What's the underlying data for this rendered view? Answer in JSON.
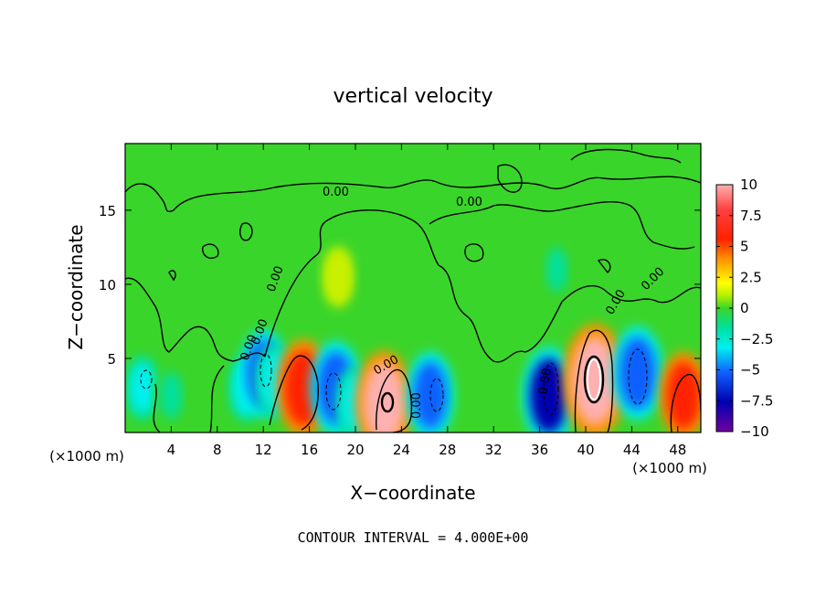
{
  "chart_data": {
    "type": "heatmap",
    "title": "vertical velocity",
    "xlabel": "X−coordinate",
    "ylabel": "Z−coordinate",
    "x_unit_left": "(×1000 m)",
    "x_unit_right": "(×1000 m)",
    "footer": "CONTOUR INTERVAL = 4.000E+00",
    "xlim": [
      0,
      50
    ],
    "ylim": [
      0,
      19.5
    ],
    "xticks": [
      "4",
      "8",
      "12",
      "16",
      "20",
      "24",
      "28",
      "32",
      "36",
      "40",
      "44",
      "48"
    ],
    "yticks": [
      "5",
      "10",
      "15"
    ],
    "colorbar": {
      "range": [
        -10,
        10
      ],
      "tick_labels": [
        "10",
        "7.5",
        "5",
        "2.5",
        "0",
        "−2.5",
        "−5",
        "−7.5",
        "−10"
      ]
    },
    "contour_labels": [
      "0.00",
      "0.00",
      "0.00",
      "0.00",
      "0.00",
      "0.00",
      "0.00",
      "0.00",
      "0.00",
      "0.00"
    ],
    "cells": [
      {
        "x": 1.5,
        "z": 3.0,
        "w": -2.5
      },
      {
        "x": 4.0,
        "z": 2.5,
        "w": -2.0
      },
      {
        "x": 10.5,
        "z": 3.0,
        "w": -3.0
      },
      {
        "x": 12.0,
        "z": 4.0,
        "w": -6.0
      },
      {
        "x": 13.0,
        "z": 3.5,
        "w": -4.0
      },
      {
        "x": 15.5,
        "z": 3.0,
        "w": 7.5
      },
      {
        "x": 18.3,
        "z": 3.0,
        "w": -7.0
      },
      {
        "x": 20.0,
        "z": 2.0,
        "w": -4.0
      },
      {
        "x": 22.5,
        "z": 2.0,
        "w": 8.5
      },
      {
        "x": 26.5,
        "z": 2.5,
        "w": -6.0
      },
      {
        "x": 36.8,
        "z": 2.5,
        "w": -7.5
      },
      {
        "x": 40.8,
        "z": 3.5,
        "w": 10.0
      },
      {
        "x": 44.5,
        "z": 4.0,
        "w": -7.0
      },
      {
        "x": 48.5,
        "z": 2.5,
        "w": 6.0
      },
      {
        "x": 18.5,
        "z": 10.5,
        "w": 2.0
      },
      {
        "x": 37.5,
        "z": 11.0,
        "w": -1.5
      }
    ]
  }
}
